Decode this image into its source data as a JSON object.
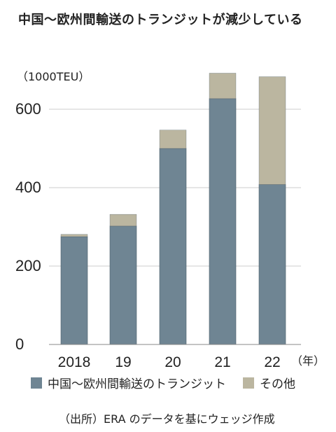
{
  "title": "中国〜欧州間輸送のトランジットが減少している",
  "source": "（出所）ERA のデータを基にウェッジ作成",
  "chart_data": {
    "type": "bar",
    "stacked": true,
    "unit_label": "（1000TEU）",
    "x_unit_label": "（年）",
    "categories": [
      "2018",
      "19",
      "20",
      "21",
      "22"
    ],
    "series": [
      {
        "name": "中国〜欧州間輸送のトランジット",
        "color": "#6f8593",
        "values": [
          275,
          302,
          500,
          627,
          408
        ]
      },
      {
        "name": "その他",
        "color": "#bbb6a0",
        "values": [
          6,
          30,
          47,
          65,
          275
        ]
      }
    ],
    "yticks": [
      0,
      200,
      400,
      600
    ],
    "ylim": [
      0,
      700
    ],
    "grid": true,
    "legend": "bottom"
  }
}
